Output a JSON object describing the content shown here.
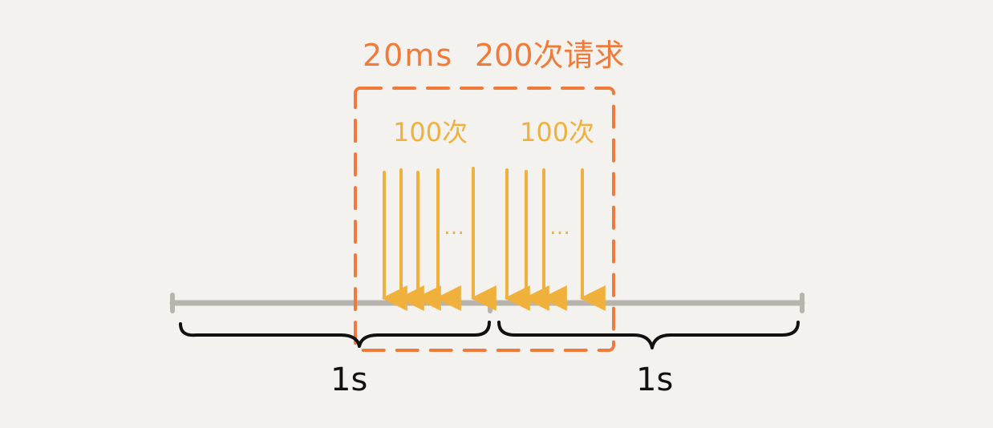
{
  "colors": {
    "background": "#f4f2ee",
    "window_box": "#f07a3a",
    "arrows": "#f0b13c",
    "timeline": "#b7b4ad",
    "braces": "#111111"
  },
  "window": {
    "label_duration": "20ms",
    "label_requests": "200次请求"
  },
  "groups": [
    {
      "label": "100次",
      "arrow_count_drawn": 5,
      "ellipsis": "…"
    },
    {
      "label": "100次",
      "arrow_count_drawn": 4,
      "ellipsis": "…"
    }
  ],
  "seconds": [
    {
      "label": "1s"
    },
    {
      "label": "1s"
    }
  ]
}
